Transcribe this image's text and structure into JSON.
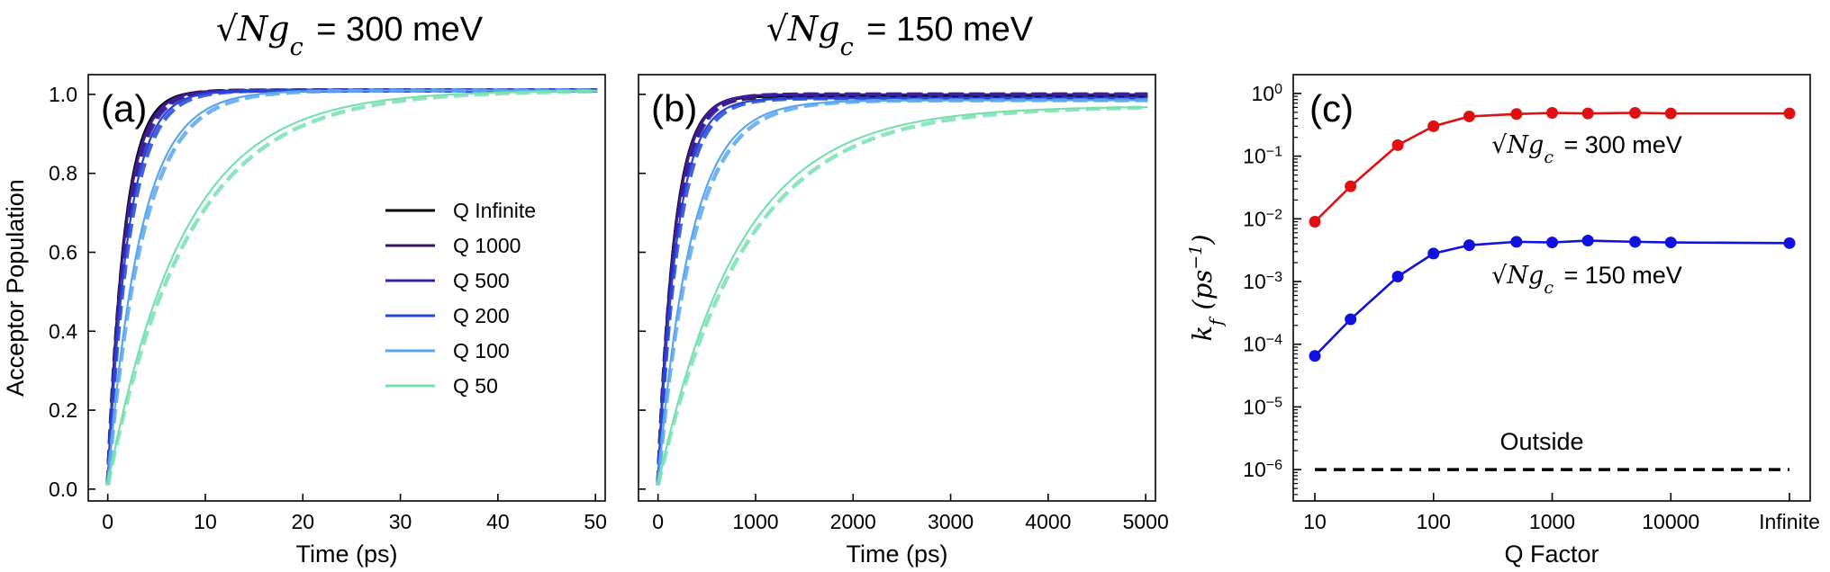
{
  "chart_data": [
    {
      "type": "line",
      "panel_label": "(a)",
      "title": "√N g_c = 300 meV",
      "title_parts": {
        "lhs": "√N",
        "g": "g",
        "sub": "c",
        "rhs": " = 300 meV"
      },
      "xlabel": "Time (ps)",
      "ylabel": "Acceptor Population",
      "xlim": [
        -2,
        51
      ],
      "ylim": [
        -0.03,
        1.05
      ],
      "xticks": [
        0,
        10,
        20,
        30,
        40,
        50
      ],
      "yticks": [
        0.0,
        0.2,
        0.4,
        0.6,
        0.8,
        1.0
      ],
      "ytick_labels": [
        "0.0",
        "0.2",
        "0.4",
        "0.6",
        "0.8",
        "1.0"
      ],
      "legend": {
        "position": "center-right",
        "entries": [
          "Q Infinite",
          "Q 1000",
          "Q 500",
          "Q 200",
          "Q 100",
          "Q 50"
        ]
      },
      "series": [
        {
          "name": "Q Infinite",
          "color": "#000000",
          "rate": 0.6,
          "plateau": 1.0
        },
        {
          "name": "Q 1000",
          "color": "#3a0f5c",
          "rate": 0.58,
          "plateau": 1.0
        },
        {
          "name": "Q 500",
          "color": "#3b1fa3",
          "rate": 0.56,
          "plateau": 1.0
        },
        {
          "name": "Q 200",
          "color": "#2546d6",
          "rate": 0.48,
          "plateau": 1.0
        },
        {
          "name": "Q 100",
          "color": "#5aa6ee",
          "rate": 0.3,
          "plateau": 1.0
        },
        {
          "name": "Q 50",
          "color": "#78e0b0",
          "rate": 0.13,
          "plateau": 1.0
        }
      ]
    },
    {
      "type": "line",
      "panel_label": "(b)",
      "title": "√N g_c = 150 meV",
      "title_parts": {
        "lhs": "√N",
        "g": "g",
        "sub": "c",
        "rhs": " = 150 meV"
      },
      "xlabel": "Time (ps)",
      "ylabel": "",
      "xlim": [
        -200,
        5100
      ],
      "ylim": [
        -0.03,
        1.05
      ],
      "xticks": [
        0,
        1000,
        2000,
        3000,
        4000,
        5000
      ],
      "series": [
        {
          "name": "Q Infinite",
          "color": "#000000",
          "rate": 0.0062,
          "plateau": 0.985
        },
        {
          "name": "Q 1000",
          "color": "#3a0f5c",
          "rate": 0.006,
          "plateau": 0.99
        },
        {
          "name": "Q 500",
          "color": "#3b1fa3",
          "rate": 0.0058,
          "plateau": 0.99
        },
        {
          "name": "Q 200",
          "color": "#2546d6",
          "rate": 0.0052,
          "plateau": 0.98
        },
        {
          "name": "Q 100",
          "color": "#5aa6ee",
          "rate": 0.003,
          "plateau": 0.975
        },
        {
          "name": "Q 50",
          "color": "#78e0b0",
          "rate": 0.0012,
          "plateau": 0.96
        }
      ]
    },
    {
      "type": "line",
      "panel_label": "(c)",
      "xlabel": "Q Factor",
      "ylabel": "k_f (ps⁻¹)",
      "ylabel_parts": {
        "k": "k",
        "sub": "f",
        "unit": "(ps",
        "sup": "−1",
        "close": ")"
      },
      "yscale": "log",
      "ylim_exp": [
        -6.5,
        0.3
      ],
      "ytick_base": "10",
      "ytick_exponents": [
        "0",
        "−1",
        "−2",
        "−3",
        "−4",
        "−5",
        "−6"
      ],
      "xticks": [
        "10",
        "100",
        "1000",
        "10000",
        "Infinite"
      ],
      "series": [
        {
          "name": "√N g_c = 300 meV",
          "label_parts": {
            "lhs": "√N",
            "g": "g",
            "sub": "c",
            "rhs": " = 300 meV"
          },
          "color": "#e01010",
          "x": [
            10,
            20,
            50,
            100,
            200,
            500,
            1000,
            2000,
            5000,
            10000,
            "Infinite"
          ],
          "y": [
            0.009,
            0.033,
            0.15,
            0.3,
            0.43,
            0.47,
            0.49,
            0.48,
            0.49,
            0.48,
            0.48
          ]
        },
        {
          "name": "√N g_c = 150 meV",
          "label_parts": {
            "lhs": "√N",
            "g": "g",
            "sub": "c",
            "rhs": " = 150 meV"
          },
          "color": "#1010e0",
          "x": [
            10,
            20,
            50,
            100,
            200,
            500,
            1000,
            2000,
            5000,
            10000,
            "Infinite"
          ],
          "y": [
            6.5e-05,
            0.00025,
            0.0012,
            0.0028,
            0.0038,
            0.0043,
            0.0042,
            0.0045,
            0.0043,
            0.0042,
            0.0041
          ]
        }
      ],
      "reference_line": {
        "label": "Outside",
        "y": 1e-06,
        "style": "dashed",
        "color": "#000000"
      }
    }
  ]
}
